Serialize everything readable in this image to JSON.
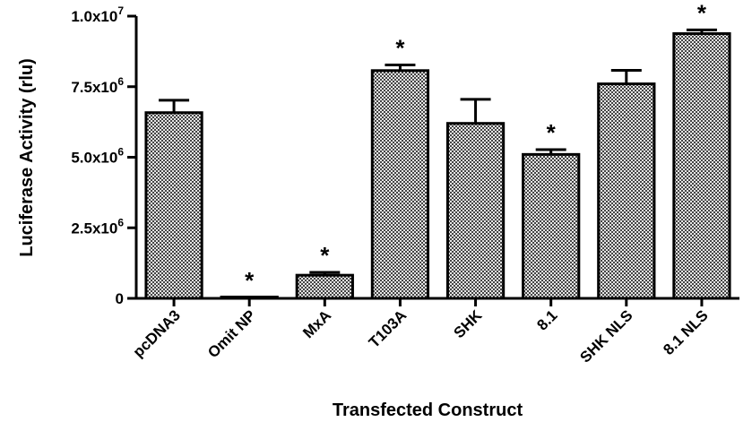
{
  "chart_data": {
    "type": "bar",
    "xlabel": "Transfected Construct",
    "ylabel": "Luciferase Activity (rlu)",
    "ylim": [
      0,
      10000000
    ],
    "grid": false,
    "y_ticks": [
      {
        "value": 0,
        "mantissa": "0",
        "exponent": ""
      },
      {
        "value": 2500000,
        "mantissa": "2.5x10",
        "exponent": "6"
      },
      {
        "value": 5000000,
        "mantissa": "5.0x10",
        "exponent": "6"
      },
      {
        "value": 7500000,
        "mantissa": "7.5x10",
        "exponent": "6"
      },
      {
        "value": 10000000,
        "mantissa": "1.0x10",
        "exponent": "7"
      }
    ],
    "categories": [
      "pcDNA3",
      "Omit NP",
      "MxA",
      "T103A",
      "SHK",
      "8.1",
      "SHK NLS",
      "8.1 NLS"
    ],
    "values": [
      6580000,
      30000,
      820000,
      8070000,
      6200000,
      5100000,
      7600000,
      9380000
    ],
    "errors": [
      440000,
      0,
      100000,
      200000,
      850000,
      170000,
      480000,
      130000
    ],
    "significance": [
      "",
      "*",
      "*",
      "*",
      "",
      "*",
      "",
      "*"
    ],
    "bar_fill": "checkered gray",
    "colors": {
      "bar_dark": "#444444",
      "bar_light": "#e6e6e6",
      "axis": "#000000"
    }
  }
}
